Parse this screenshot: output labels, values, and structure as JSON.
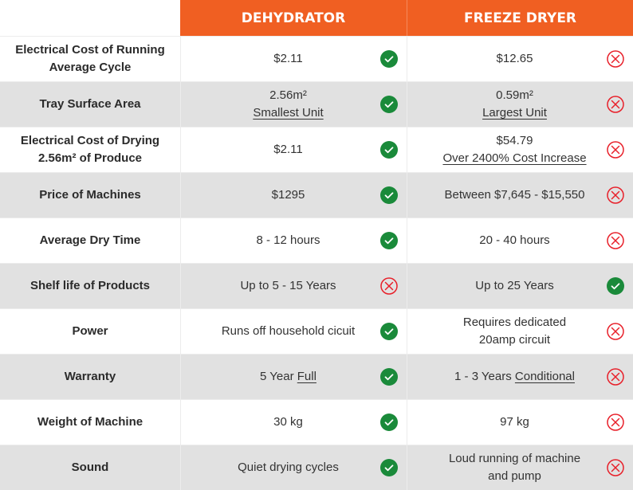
{
  "header": {
    "col1": "DEHYDRATOR",
    "col2": "FREEZE DRYER"
  },
  "colors": {
    "header": "#f05f22",
    "check": "#1a8a3a",
    "cross": "#e8202a",
    "alt_row": "#e1e1e1"
  },
  "rows": [
    {
      "label": [
        "Electrical Cost of Running",
        "Average Cycle"
      ],
      "a": {
        "lines": [
          [
            {
              "t": "$2.11"
            }
          ]
        ],
        "icon": "check"
      },
      "b": {
        "lines": [
          [
            {
              "t": "$12.65"
            }
          ]
        ],
        "icon": "cross"
      }
    },
    {
      "label": [
        "Tray Surface Area"
      ],
      "a": {
        "lines": [
          [
            {
              "t": "2.56m²"
            }
          ],
          [
            {
              "t": "Smallest Unit",
              "u": true
            }
          ]
        ],
        "icon": "check"
      },
      "b": {
        "lines": [
          [
            {
              "t": "0.59m²"
            }
          ],
          [
            {
              "t": "Largest Unit",
              "u": true
            }
          ]
        ],
        "icon": "cross"
      }
    },
    {
      "label": [
        "Electrical Cost of Drying",
        "2.56m² of Produce"
      ],
      "a": {
        "lines": [
          [
            {
              "t": "$2.11"
            }
          ]
        ],
        "icon": "check"
      },
      "b": {
        "lines": [
          [
            {
              "t": "$54.79"
            }
          ],
          [
            {
              "t": "Over 2400% Cost Increase",
              "u": true
            }
          ]
        ],
        "icon": "cross"
      }
    },
    {
      "label": [
        "Price of Machines"
      ],
      "a": {
        "lines": [
          [
            {
              "t": "$1295"
            }
          ]
        ],
        "icon": "check"
      },
      "b": {
        "lines": [
          [
            {
              "t": "Between $7,645 - $15,550"
            }
          ]
        ],
        "icon": "cross"
      }
    },
    {
      "label": [
        "Average Dry Time"
      ],
      "a": {
        "lines": [
          [
            {
              "t": "8 - 12 hours"
            }
          ]
        ],
        "icon": "check"
      },
      "b": {
        "lines": [
          [
            {
              "t": "20 - 40 hours"
            }
          ]
        ],
        "icon": "cross"
      }
    },
    {
      "label": [
        "Shelf life of Products"
      ],
      "a": {
        "lines": [
          [
            {
              "t": "Up to 5 - 15 Years"
            }
          ]
        ],
        "icon": "cross"
      },
      "b": {
        "lines": [
          [
            {
              "t": "Up to 25 Years"
            }
          ]
        ],
        "icon": "check"
      }
    },
    {
      "label": [
        "Power"
      ],
      "a": {
        "lines": [
          [
            {
              "t": "Runs off household cicuit"
            }
          ]
        ],
        "icon": "check"
      },
      "b": {
        "lines": [
          [
            {
              "t": "Requires dedicated"
            }
          ],
          [
            {
              "t": "20amp circuit"
            }
          ]
        ],
        "icon": "cross"
      }
    },
    {
      "label": [
        "Warranty"
      ],
      "a": {
        "lines": [
          [
            {
              "t": "5 Year "
            },
            {
              "t": "Full",
              "u": true
            }
          ]
        ],
        "icon": "check"
      },
      "b": {
        "lines": [
          [
            {
              "t": "1 - 3 Years "
            },
            {
              "t": "Conditional",
              "u": true
            }
          ]
        ],
        "icon": "cross"
      }
    },
    {
      "label": [
        "Weight of Machine"
      ],
      "a": {
        "lines": [
          [
            {
              "t": "30 kg"
            }
          ]
        ],
        "icon": "check"
      },
      "b": {
        "lines": [
          [
            {
              "t": "97 kg"
            }
          ]
        ],
        "icon": "cross"
      }
    },
    {
      "label": [
        "Sound"
      ],
      "a": {
        "lines": [
          [
            {
              "t": "Quiet drying cycles"
            }
          ]
        ],
        "icon": "check"
      },
      "b": {
        "lines": [
          [
            {
              "t": "Loud running of machine"
            }
          ],
          [
            {
              "t": "and pump"
            }
          ]
        ],
        "icon": "cross"
      }
    }
  ]
}
